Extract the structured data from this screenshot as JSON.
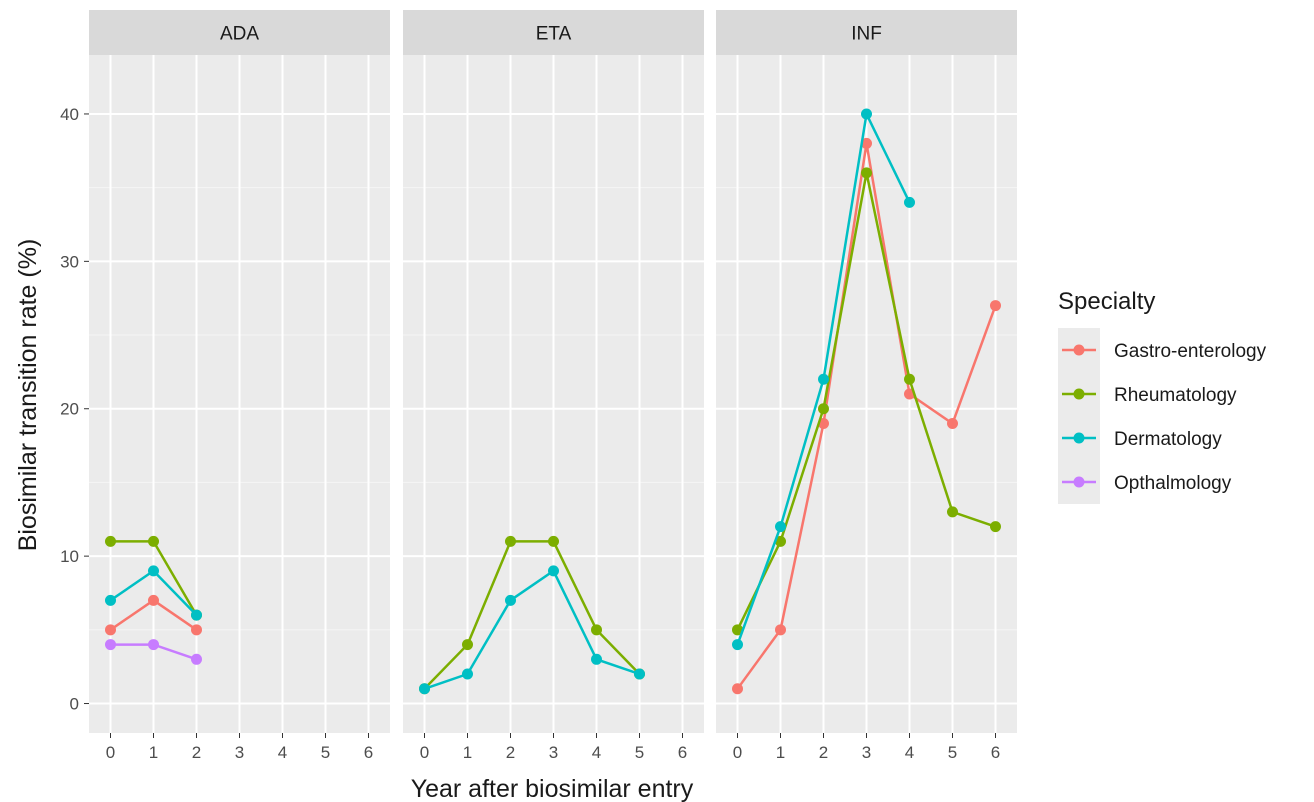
{
  "chart_data": {
    "type": "line",
    "xlabel": "Year after biosimilar entry",
    "ylabel": "Biosimilar transition rate (%)",
    "x_ticks": [
      0,
      1,
      2,
      3,
      4,
      5,
      6
    ],
    "y_ticks": [
      0,
      10,
      20,
      30,
      40
    ],
    "xlim": [
      -0.5,
      6.5
    ],
    "ylim": [
      -2,
      44
    ],
    "grid": true,
    "legend": {
      "title": "Specialty",
      "placement": "right",
      "entries": [
        "Gastro-enterology",
        "Rheumatology",
        "Dermatology",
        "Opthalmology"
      ]
    },
    "colors": {
      "Gastro-enterology": "#F8766D",
      "Rheumatology": "#7CAE00",
      "Dermatology": "#00BFC4",
      "Opthalmology": "#C77CFF"
    },
    "panels": [
      {
        "label": "ADA",
        "series": [
          {
            "name": "Gastro-enterology",
            "x": [
              0,
              1,
              2
            ],
            "y": [
              5,
              7,
              5
            ]
          },
          {
            "name": "Rheumatology",
            "x": [
              0,
              1,
              2
            ],
            "y": [
              11,
              11,
              6
            ]
          },
          {
            "name": "Dermatology",
            "x": [
              0,
              1,
              2
            ],
            "y": [
              7,
              9,
              6
            ]
          },
          {
            "name": "Opthalmology",
            "x": [
              0,
              1,
              2
            ],
            "y": [
              4,
              4,
              3
            ]
          }
        ]
      },
      {
        "label": "ETA",
        "series": [
          {
            "name": "Rheumatology",
            "x": [
              0,
              1,
              2,
              3,
              4,
              5
            ],
            "y": [
              1,
              4,
              11,
              11,
              5,
              2
            ]
          },
          {
            "name": "Dermatology",
            "x": [
              0,
              1,
              2,
              3,
              4,
              5
            ],
            "y": [
              1,
              2,
              7,
              9,
              3,
              2
            ]
          }
        ]
      },
      {
        "label": "INF",
        "series": [
          {
            "name": "Gastro-enterology",
            "x": [
              0,
              1,
              2,
              3,
              4,
              5,
              6
            ],
            "y": [
              1,
              5,
              19,
              38,
              21,
              19,
              27
            ]
          },
          {
            "name": "Rheumatology",
            "x": [
              0,
              1,
              2,
              3,
              4,
              5,
              6
            ],
            "y": [
              5,
              11,
              20,
              36,
              22,
              13,
              12
            ]
          },
          {
            "name": "Dermatology",
            "x": [
              0,
              1,
              2,
              3,
              4
            ],
            "y": [
              4,
              12,
              22,
              40,
              34
            ]
          }
        ]
      }
    ]
  }
}
